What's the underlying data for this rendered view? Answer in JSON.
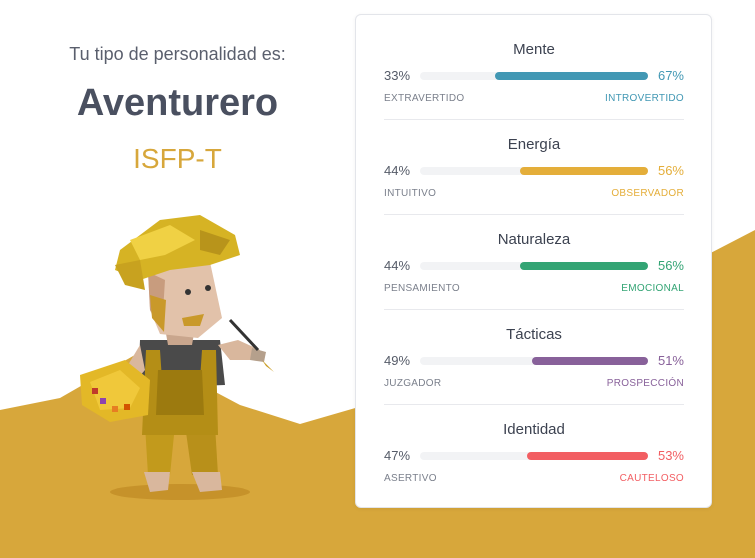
{
  "header": {
    "intro": "Tu tipo de personalidad es:",
    "type_name": "Aventurero",
    "type_code": "ISFP-T"
  },
  "colors": {
    "gold": "#d7a73b",
    "mind": "#4298b4",
    "energy": "#e4ae3a",
    "nature": "#33a474",
    "tactics": "#88619a",
    "identity": "#f25e62"
  },
  "traits": [
    {
      "title": "Mente",
      "left_pct": "33%",
      "right_pct": "67%",
      "left_label": "EXTRAVERTIDO",
      "right_label": "INTROVERTIDO",
      "fill": 0.67,
      "color": "#4298b4"
    },
    {
      "title": "Energía",
      "left_pct": "44%",
      "right_pct": "56%",
      "left_label": "INTUITIVO",
      "right_label": "OBSERVADOR",
      "fill": 0.56,
      "color": "#e4ae3a"
    },
    {
      "title": "Naturaleza",
      "left_pct": "44%",
      "right_pct": "56%",
      "left_label": "PENSAMIENTO",
      "right_label": "EMOCIONAL",
      "fill": 0.56,
      "color": "#33a474"
    },
    {
      "title": "Tácticas",
      "left_pct": "49%",
      "right_pct": "51%",
      "left_label": "JUZGADOR",
      "right_label": "PROSPECCIÓN",
      "fill": 0.51,
      "color": "#88619a"
    },
    {
      "title": "Identidad",
      "left_pct": "47%",
      "right_pct": "53%",
      "left_label": "ASERTIVO",
      "right_label": "CAUTELOSO",
      "fill": 0.53,
      "color": "#f25e62"
    }
  ]
}
